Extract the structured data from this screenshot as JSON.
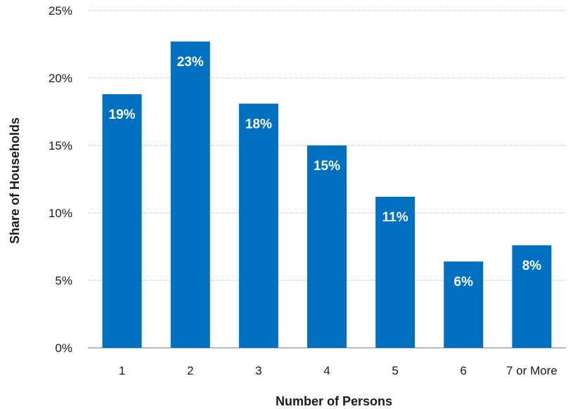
{
  "chart_data": {
    "type": "bar",
    "title": "",
    "xlabel": "Number of Persons",
    "ylabel": "Share of Households",
    "categories": [
      "1",
      "2",
      "3",
      "4",
      "5",
      "6",
      "7 or More"
    ],
    "values": [
      18.8,
      22.7,
      18.1,
      15.0,
      11.2,
      6.4,
      7.6
    ],
    "data_labels": [
      "19%",
      "23%",
      "18%",
      "15%",
      "11%",
      "6%",
      "8%"
    ],
    "ylim": [
      0,
      25
    ],
    "yticks": [
      0,
      5,
      10,
      15,
      20,
      25
    ],
    "ytick_labels": [
      "0%",
      "5%",
      "10%",
      "15%",
      "20%",
      "25%"
    ],
    "bar_color": "#0070C0",
    "grid": true,
    "legend": "none"
  }
}
